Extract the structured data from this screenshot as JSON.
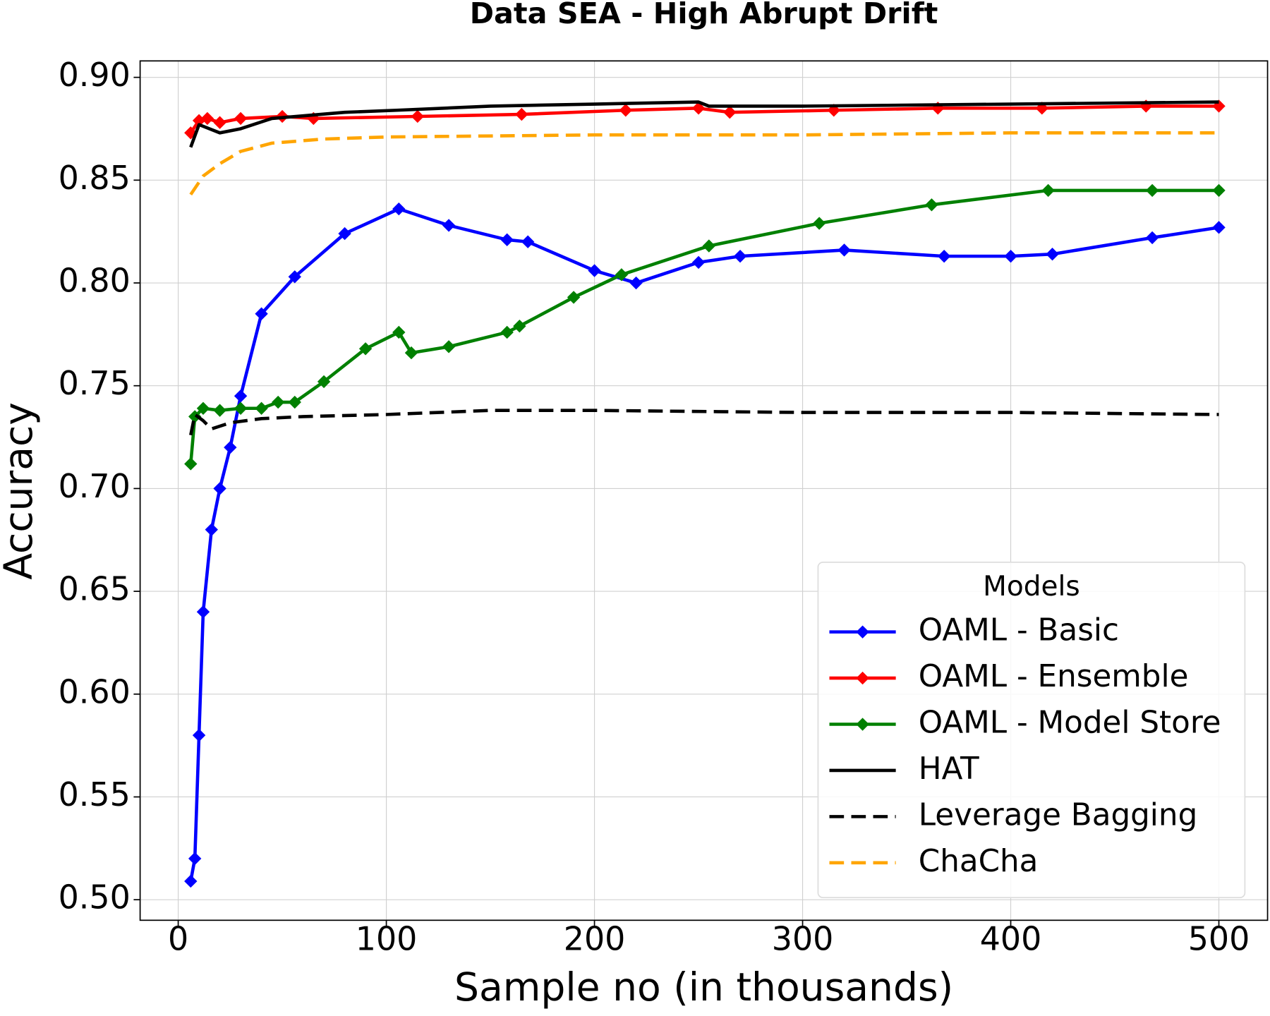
{
  "chart_data": {
    "type": "line",
    "title": "Data SEA - High Abrupt Drift",
    "x_label": "Sample no (in thousands)",
    "y_label": "Accuracy",
    "xlim": [
      -18.3,
      523.4
    ],
    "ylim": [
      0.49,
      0.908
    ],
    "xticks": [
      0,
      100,
      200,
      300,
      400,
      500
    ],
    "yticks": [
      {
        "value": 0.5,
        "label": "0.50"
      },
      {
        "value": 0.55,
        "label": "0.55"
      },
      {
        "value": 0.6,
        "label": "0.60"
      },
      {
        "value": 0.65,
        "label": "0.65"
      },
      {
        "value": 0.7,
        "label": "0.70"
      },
      {
        "value": 0.75,
        "label": "0.75"
      },
      {
        "value": 0.8,
        "label": "0.80"
      },
      {
        "value": 0.85,
        "label": "0.85"
      },
      {
        "value": 0.9,
        "label": "0.90"
      }
    ],
    "grid": true,
    "legend_title": "Models",
    "legend_position": "lower right",
    "series": [
      {
        "name": "OAML - Basic",
        "color": "#0000ff",
        "marker": "D",
        "linestyle": "solid",
        "x": [
          6,
          8,
          10,
          12,
          16,
          20,
          25,
          30,
          40,
          56,
          80,
          106,
          130,
          158,
          168,
          200,
          220,
          250,
          270,
          320,
          368,
          400,
          420,
          468,
          500
        ],
        "values": [
          0.509,
          0.52,
          0.58,
          0.64,
          0.68,
          0.7,
          0.72,
          0.745,
          0.785,
          0.803,
          0.824,
          0.836,
          0.828,
          0.821,
          0.82,
          0.806,
          0.8,
          0.81,
          0.813,
          0.816,
          0.813,
          0.813,
          0.814,
          0.822,
          0.827
        ]
      },
      {
        "name": "OAML - Ensemble",
        "color": "#ff0000",
        "marker": "D",
        "linestyle": "solid",
        "x": [
          6,
          10,
          14,
          20,
          30,
          50,
          65,
          115,
          165,
          215,
          250,
          265,
          315,
          365,
          415,
          465,
          500
        ],
        "values": [
          0.873,
          0.879,
          0.88,
          0.878,
          0.88,
          0.881,
          0.88,
          0.881,
          0.882,
          0.884,
          0.885,
          0.883,
          0.884,
          0.885,
          0.885,
          0.886,
          0.886
        ]
      },
      {
        "name": "OAML - Model Store",
        "color": "#008000",
        "marker": "D",
        "linestyle": "solid",
        "x": [
          6,
          8,
          12,
          20,
          30,
          40,
          48,
          56,
          70,
          90,
          106,
          112,
          130,
          158,
          164,
          190,
          213,
          255,
          308,
          362,
          418,
          468,
          500
        ],
        "values": [
          0.712,
          0.735,
          0.739,
          0.738,
          0.739,
          0.739,
          0.742,
          0.742,
          0.752,
          0.768,
          0.776,
          0.766,
          0.769,
          0.776,
          0.779,
          0.793,
          0.804,
          0.818,
          0.829,
          0.838,
          0.845,
          0.845,
          0.845
        ]
      },
      {
        "name": "HAT",
        "color": "#000000",
        "linestyle": "solid",
        "x": [
          6,
          10,
          15,
          20,
          30,
          45,
          80,
          105,
          150,
          200,
          250,
          255,
          300,
          400,
          500
        ],
        "values": [
          0.866,
          0.877,
          0.875,
          0.873,
          0.875,
          0.88,
          0.883,
          0.884,
          0.886,
          0.887,
          0.888,
          0.886,
          0.886,
          0.887,
          0.888
        ]
      },
      {
        "name": "Leverage Bagging",
        "color": "#000000",
        "linestyle": "dashed",
        "x": [
          6,
          8,
          12,
          16,
          25,
          40,
          60,
          100,
          150,
          200,
          300,
          400,
          500
        ],
        "values": [
          0.726,
          0.736,
          0.733,
          0.729,
          0.732,
          0.734,
          0.735,
          0.736,
          0.738,
          0.738,
          0.737,
          0.737,
          0.736
        ]
      },
      {
        "name": "ChaCha",
        "color": "#ffa500",
        "linestyle": "dashed",
        "x": [
          6,
          12,
          20,
          30,
          45,
          70,
          100,
          200,
          300,
          400,
          500
        ],
        "values": [
          0.843,
          0.852,
          0.858,
          0.864,
          0.868,
          0.87,
          0.871,
          0.872,
          0.872,
          0.873,
          0.873
        ]
      }
    ]
  }
}
